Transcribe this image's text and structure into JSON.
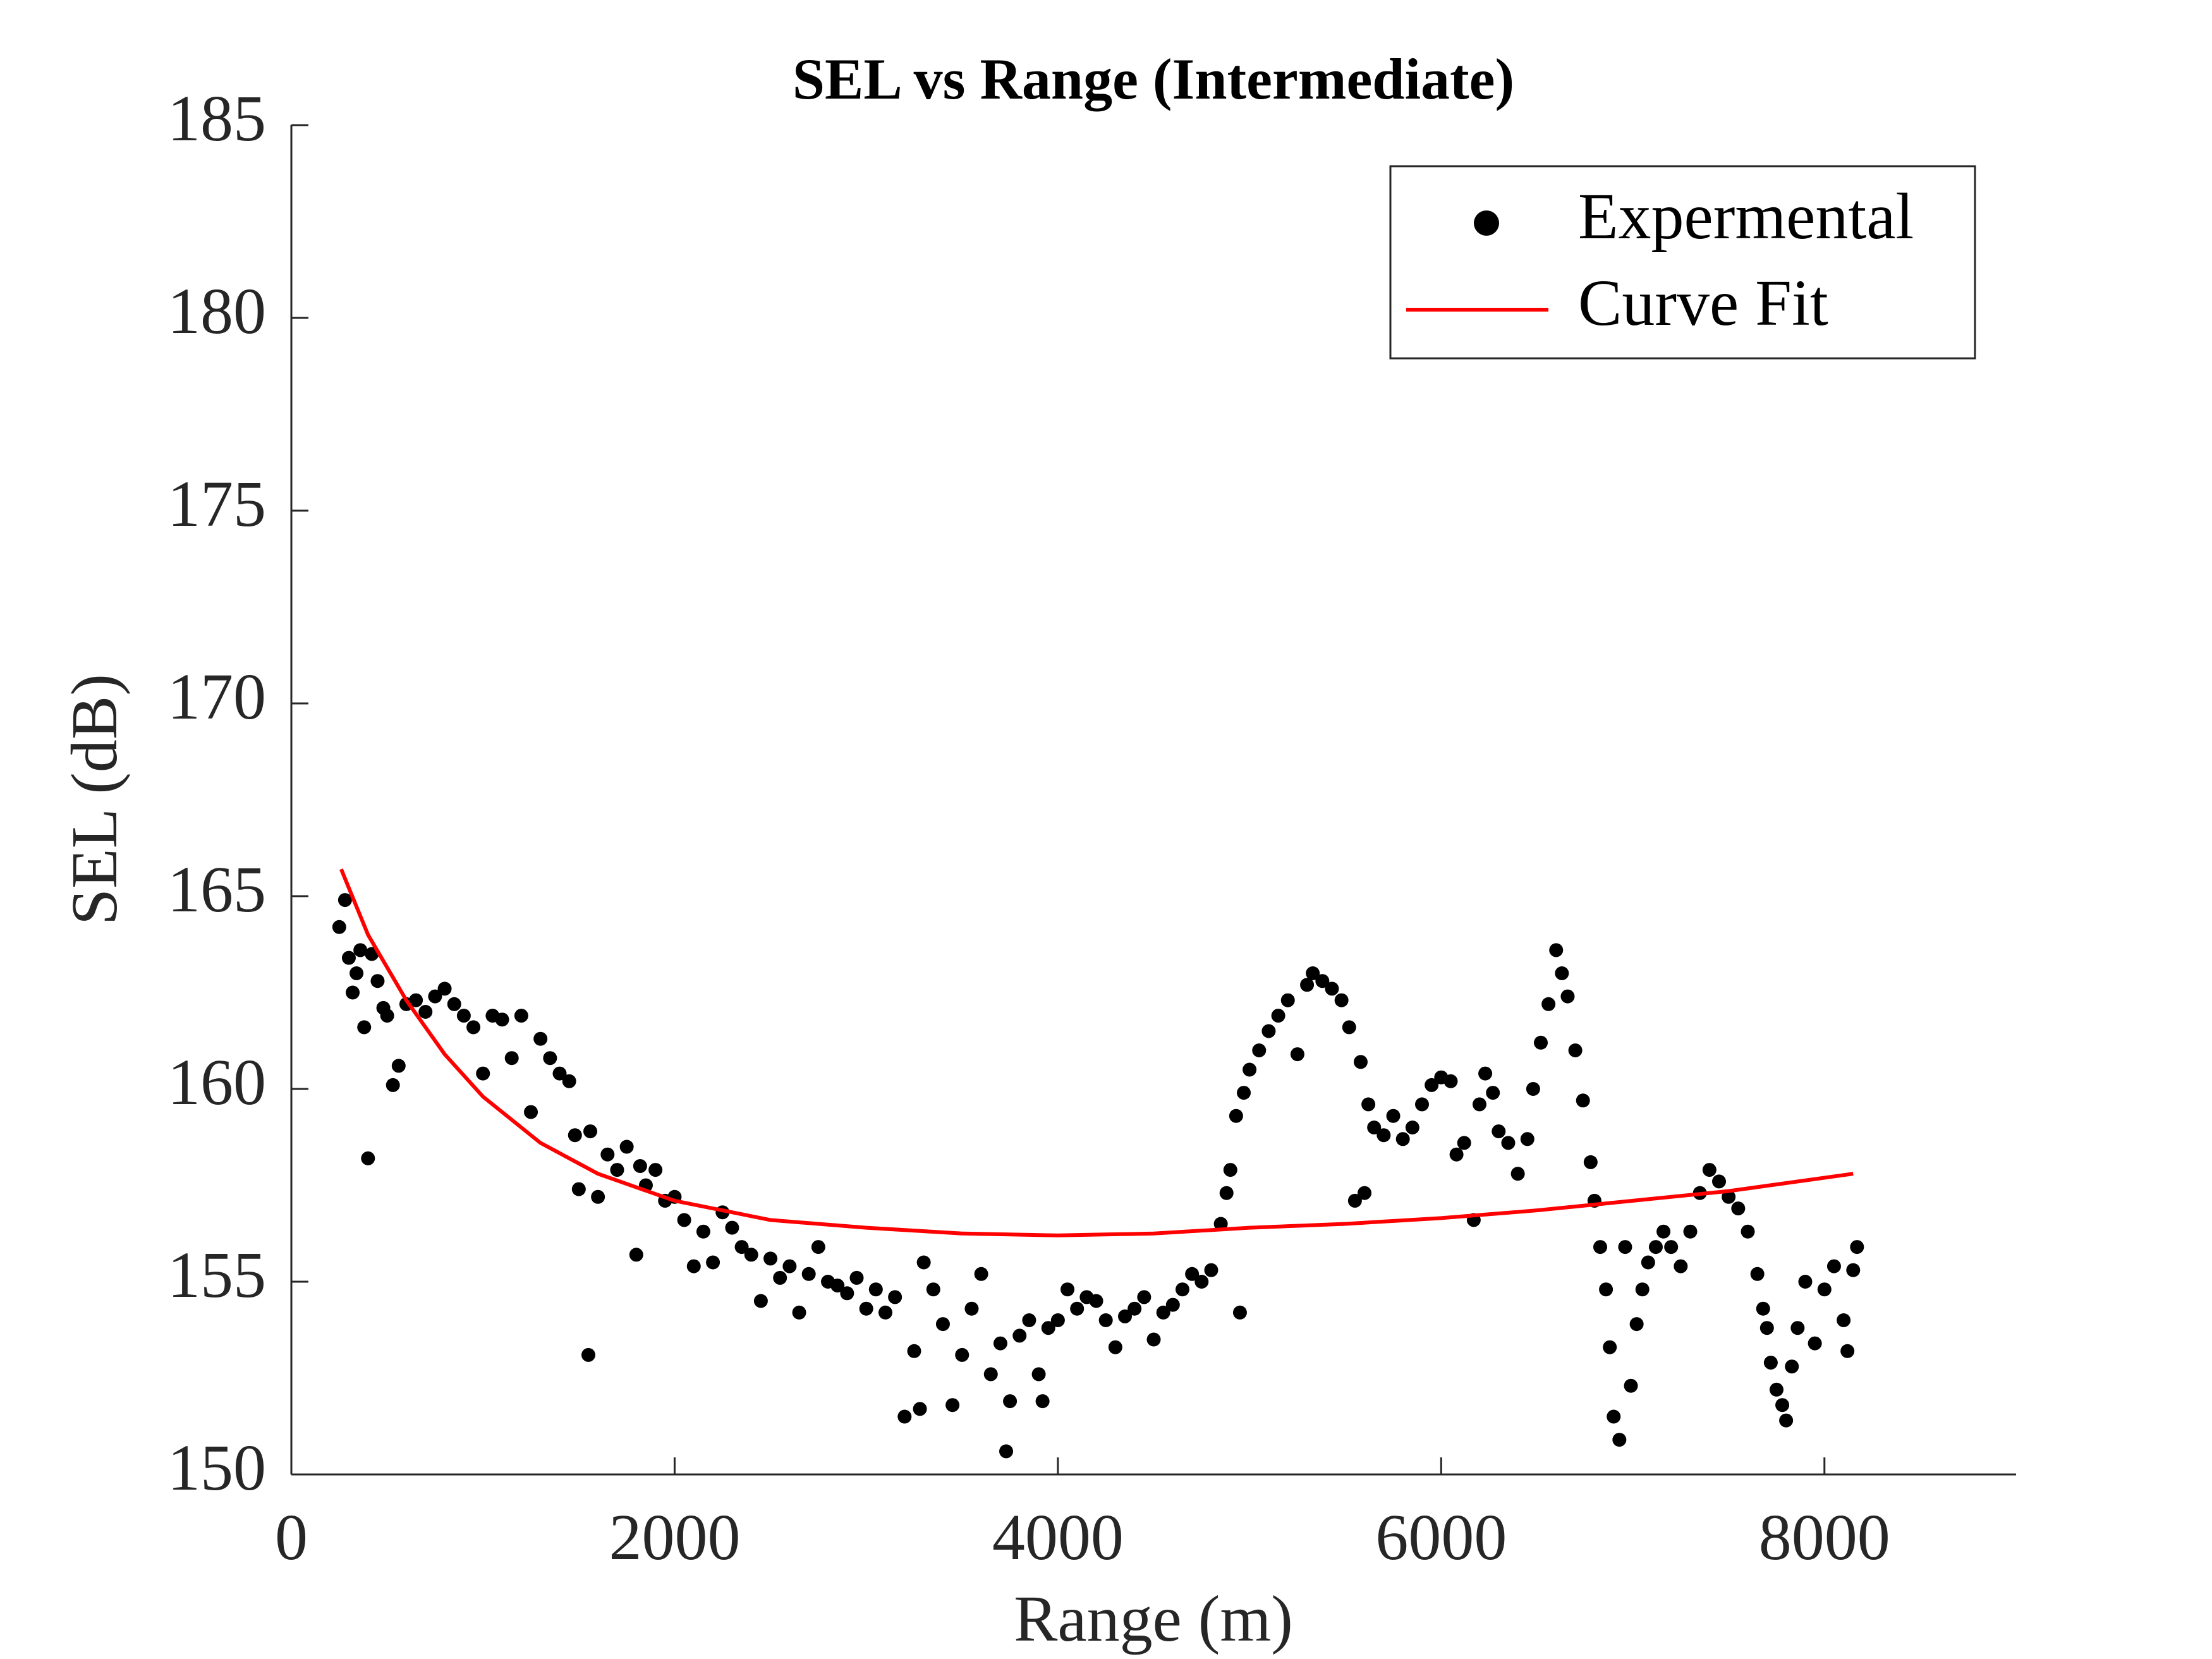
{
  "chart_data": {
    "type": "scatter",
    "title": "SEL vs Range (Intermediate)",
    "x_label": "Range (m)",
    "y_label": "SEL (dB)",
    "xlim": [
      0,
      9000
    ],
    "xticks": [
      0,
      2000,
      4000,
      6000,
      8000
    ],
    "ylim": [
      150,
      185
    ],
    "yticks": [
      150,
      155,
      160,
      165,
      170,
      175,
      180,
      185
    ],
    "grid": false,
    "legend": "northeast",
    "series": [
      {
        "name": "Expermental",
        "color": "#000000",
        "mode": "markers",
        "x": [
          250,
          280,
          300,
          320,
          340,
          360,
          380,
          400,
          420,
          450,
          480,
          500,
          530,
          560,
          600,
          650,
          700,
          750,
          800,
          850,
          900,
          950,
          1000,
          1050,
          1100,
          1150,
          1200,
          1250,
          1300,
          1350,
          1400,
          1450,
          1480,
          1500,
          1550,
          1560,
          1600,
          1650,
          1700,
          1750,
          1800,
          1820,
          1850,
          1900,
          1950,
          2000,
          2050,
          2100,
          2150,
          2200,
          2250,
          2300,
          2350,
          2400,
          2450,
          2500,
          2550,
          2600,
          2650,
          2700,
          2750,
          2800,
          2850,
          2900,
          2950,
          3000,
          3050,
          3100,
          3150,
          3200,
          3250,
          3280,
          3300,
          3350,
          3400,
          3450,
          3500,
          3550,
          3600,
          3650,
          3700,
          3730,
          3750,
          3800,
          3850,
          3900,
          3920,
          3950,
          4000,
          4050,
          4100,
          4150,
          4200,
          4250,
          4300,
          4350,
          4400,
          4450,
          4500,
          4550,
          4600,
          4650,
          4700,
          4750,
          4800,
          4850,
          4880,
          4900,
          4930,
          4950,
          4970,
          5000,
          5050,
          5100,
          5150,
          5200,
          5250,
          5300,
          5330,
          5380,
          5430,
          5480,
          5520,
          5550,
          5580,
          5600,
          5620,
          5650,
          5700,
          5750,
          5800,
          5850,
          5900,
          5950,
          6000,
          6050,
          6080,
          6120,
          6170,
          6200,
          6230,
          6270,
          6300,
          6350,
          6400,
          6450,
          6480,
          6520,
          6560,
          6600,
          6630,
          6660,
          6700,
          6740,
          6780,
          6800,
          6830,
          6860,
          6880,
          6900,
          6930,
          6960,
          6990,
          7020,
          7050,
          7080,
          7120,
          7160,
          7200,
          7250,
          7300,
          7350,
          7400,
          7450,
          7500,
          7550,
          7600,
          7650,
          7680,
          7700,
          7720,
          7750,
          7780,
          7800,
          7830,
          7860,
          7900,
          7950,
          8000,
          8050,
          8100,
          8120,
          8150,
          8170
        ],
        "values": [
          164.2,
          164.9,
          163.4,
          162.5,
          163.0,
          163.6,
          161.6,
          158.2,
          163.5,
          162.8,
          162.1,
          161.9,
          160.1,
          160.6,
          162.2,
          162.3,
          162.0,
          162.4,
          162.6,
          162.2,
          161.9,
          161.6,
          160.4,
          161.9,
          161.8,
          160.8,
          161.9,
          159.4,
          161.3,
          160.8,
          160.4,
          160.2,
          158.8,
          157.4,
          153.1,
          158.9,
          157.2,
          158.3,
          157.9,
          158.5,
          155.7,
          158.0,
          157.5,
          157.9,
          157.1,
          157.2,
          156.6,
          155.4,
          156.3,
          155.5,
          156.8,
          156.4,
          155.9,
          155.7,
          154.5,
          155.6,
          155.1,
          155.4,
          154.2,
          155.2,
          155.9,
          155.0,
          154.9,
          154.7,
          155.1,
          154.3,
          154.8,
          154.2,
          154.6,
          151.5,
          153.2,
          151.7,
          155.5,
          154.8,
          153.9,
          151.8,
          153.1,
          154.3,
          155.2,
          152.6,
          153.4,
          150.6,
          151.9,
          153.6,
          154.0,
          152.6,
          151.9,
          153.8,
          154.0,
          154.8,
          154.3,
          154.6,
          154.5,
          154.0,
          153.3,
          154.1,
          154.3,
          154.6,
          153.5,
          154.2,
          154.4,
          154.8,
          155.2,
          155.0,
          155.3,
          156.5,
          157.3,
          157.9,
          159.3,
          154.2,
          159.9,
          160.5,
          161.0,
          161.5,
          161.9,
          162.3,
          160.9,
          162.7,
          163.0,
          162.8,
          162.6,
          162.3,
          161.6,
          157.1,
          160.7,
          157.3,
          159.6,
          159.0,
          158.8,
          159.3,
          158.7,
          159.0,
          159.6,
          160.1,
          160.3,
          160.2,
          158.3,
          158.6,
          156.6,
          159.6,
          160.4,
          159.9,
          158.9,
          158.6,
          157.8,
          158.7,
          160.0,
          161.2,
          162.2,
          163.6,
          163.0,
          162.4,
          161.0,
          159.7,
          158.1,
          157.1,
          155.9,
          154.8,
          153.3,
          151.5,
          150.9,
          155.9,
          152.3,
          153.9,
          154.8,
          155.5,
          155.9,
          156.3,
          155.9,
          155.4,
          156.3,
          157.3,
          157.9,
          157.6,
          157.2,
          156.9,
          156.3,
          155.2,
          154.3,
          153.8,
          152.9,
          152.2,
          151.8,
          151.4,
          152.8,
          153.8,
          155.0,
          153.4,
          154.8,
          155.4,
          154.0,
          153.2,
          155.3,
          155.9
        ]
      },
      {
        "name": "Curve Fit",
        "color": "#ff0000",
        "mode": "line",
        "x": [
          260,
          400,
          600,
          800,
          1000,
          1300,
          1600,
          2000,
          2500,
          3000,
          3500,
          4000,
          4500,
          5000,
          5500,
          6000,
          6500,
          7000,
          7500,
          8150
        ],
        "values": [
          165.7,
          164.0,
          162.3,
          160.9,
          159.8,
          158.6,
          157.8,
          157.1,
          156.6,
          156.4,
          156.25,
          156.2,
          156.25,
          156.4,
          156.5,
          156.65,
          156.85,
          157.1,
          157.35,
          157.8
        ]
      }
    ]
  }
}
